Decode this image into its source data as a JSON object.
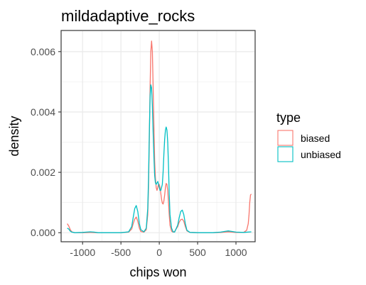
{
  "chart_data": {
    "type": "line",
    "title": "mildadaptive_rocks",
    "xlabel": "chips won",
    "ylabel": "density",
    "xlim": [
      -1280,
      1250
    ],
    "ylim": [
      -0.0003,
      0.0067
    ],
    "x_ticks": [
      -1000,
      -500,
      0,
      500,
      1000
    ],
    "x_tick_labels": [
      "-1000",
      "-500",
      "0",
      "500",
      "1000"
    ],
    "x_minor_ticks": [
      -750,
      -250,
      250,
      750
    ],
    "y_ticks": [
      0.0,
      0.002,
      0.004,
      0.006
    ],
    "y_tick_labels": [
      "0.000",
      "0.002",
      "0.004",
      "0.006"
    ],
    "y_minor_ticks": [
      0.001,
      0.003,
      0.005
    ],
    "grid": true,
    "legend": {
      "title": "type",
      "position": "right",
      "entries": [
        "biased",
        "unbiased"
      ]
    },
    "series": [
      {
        "name": "biased",
        "color": "#F8766D",
        "x": [
          -1200,
          -1180,
          -1160,
          -1140,
          -1100,
          -1000,
          -900,
          -800,
          -600,
          -500,
          -400,
          -360,
          -340,
          -320,
          -300,
          -280,
          -260,
          -240,
          -200,
          -170,
          -150,
          -140,
          -130,
          -120,
          -110,
          -100,
          -90,
          -80,
          -70,
          -60,
          -50,
          -40,
          -30,
          -20,
          -10,
          0,
          10,
          20,
          30,
          40,
          50,
          60,
          70,
          80,
          90,
          100,
          110,
          120,
          130,
          140,
          160,
          180,
          200,
          240,
          260,
          280,
          300,
          320,
          340,
          360,
          400,
          500,
          600,
          700,
          800,
          900,
          1000,
          1100,
          1140,
          1160,
          1170,
          1180,
          1190,
          1200
        ],
        "y": [
          0.0003,
          0.00022,
          0.0001,
          3e-05,
          0.0,
          0.0,
          1e-05,
          0.0,
          0.0,
          0.0,
          2e-05,
          0.00012,
          0.0003,
          0.00045,
          0.00052,
          0.00038,
          0.00015,
          4e-05,
          2e-05,
          0.0001,
          0.0006,
          0.0015,
          0.003,
          0.0048,
          0.006,
          0.00635,
          0.006,
          0.0048,
          0.0035,
          0.0024,
          0.0018,
          0.0015,
          0.0014,
          0.0015,
          0.0016,
          0.0016,
          0.0015,
          0.0013,
          0.0011,
          0.00098,
          0.00095,
          0.00105,
          0.00125,
          0.0015,
          0.00163,
          0.0016,
          0.0014,
          0.001,
          0.0006,
          0.00025,
          5e-05,
          2e-05,
          4e-05,
          0.0002,
          0.00035,
          0.00043,
          0.00045,
          0.00038,
          0.0002,
          6e-05,
          1e-05,
          0.0,
          0.0,
          0.0,
          1e-05,
          3e-05,
          1e-05,
          1e-05,
          8e-05,
          0.0003,
          0.0006,
          0.001,
          0.00125,
          0.00128
        ]
      },
      {
        "name": "unbiased",
        "color": "#00BFC4",
        "x": [
          -1200,
          -1180,
          -1160,
          -1140,
          -1100,
          -1000,
          -950,
          -900,
          -850,
          -800,
          -600,
          -500,
          -400,
          -360,
          -340,
          -320,
          -300,
          -280,
          -260,
          -240,
          -200,
          -170,
          -150,
          -140,
          -130,
          -120,
          -110,
          -100,
          -90,
          -80,
          -70,
          -60,
          -50,
          -40,
          -30,
          -20,
          -10,
          0,
          10,
          20,
          40,
          50,
          60,
          70,
          80,
          90,
          100,
          110,
          120,
          130,
          140,
          160,
          180,
          200,
          240,
          260,
          280,
          300,
          320,
          340,
          360,
          400,
          500,
          600,
          700,
          800,
          850,
          900,
          950,
          1000,
          1100,
          1200
        ],
        "y": [
          0.00015,
          0.00012,
          5e-05,
          2e-05,
          0.0,
          1e-05,
          2e-05,
          3e-05,
          2e-05,
          0.0,
          0.0,
          0.0,
          3e-05,
          0.0002,
          0.0005,
          0.0008,
          0.0009,
          0.0007,
          0.0003,
          0.0001,
          3e-05,
          0.00015,
          0.0008,
          0.0018,
          0.0033,
          0.0045,
          0.0049,
          0.0048,
          0.0042,
          0.0033,
          0.0025,
          0.0019,
          0.00165,
          0.0016,
          0.00165,
          0.0017,
          0.0016,
          0.0015,
          0.0014,
          0.0014,
          0.0016,
          0.002,
          0.0026,
          0.0031,
          0.0034,
          0.0035,
          0.0034,
          0.003,
          0.0022,
          0.0013,
          0.0006,
          0.00015,
          3e-05,
          2e-05,
          0.00025,
          0.0005,
          0.0007,
          0.00075,
          0.0006,
          0.0003,
          8e-05,
          1e-05,
          0.0,
          0.0,
          0.0,
          2e-05,
          4e-05,
          6e-05,
          4e-05,
          2e-05,
          1e-05,
          3e-05
        ]
      }
    ]
  }
}
